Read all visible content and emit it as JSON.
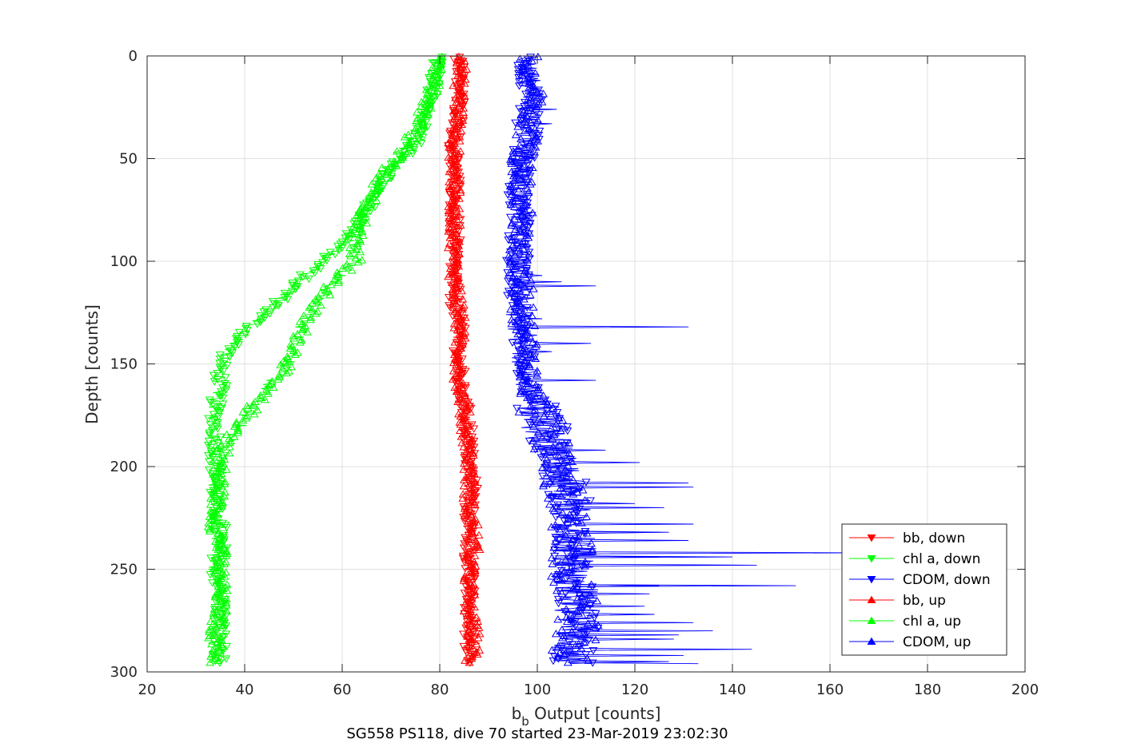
{
  "chart_data": {
    "type": "line",
    "title": "",
    "xlabel_main": "b",
    "xlabel_sub": "b",
    "xlabel_rest": " Output [counts]",
    "ylabel": "Depth [counts]",
    "caption": "SG558 PS118, dive 70 started 23-Mar-2019 23:02:30",
    "xlim": [
      20,
      200
    ],
    "ylim": [
      0,
      300
    ],
    "y_reversed": true,
    "grid": true,
    "legend_position": "bottom-right",
    "x_ticks": [
      "20",
      "40",
      "60",
      "80",
      "100",
      "120",
      "140",
      "160",
      "180",
      "200"
    ],
    "y_ticks": [
      "0",
      "50",
      "100",
      "150",
      "200",
      "250",
      "300"
    ],
    "colors": {
      "bb": "#ff0000",
      "chl": "#00ff00",
      "cdom": "#0000ff",
      "grid": "#e0e0e0",
      "axis": "#262626"
    },
    "series": [
      {
        "name": "bb, down",
        "color": "#ff0000",
        "marker": "triangle-down",
        "depth": [
          1,
          10,
          20,
          30,
          40,
          50,
          60,
          70,
          80,
          90,
          100,
          110,
          120,
          130,
          140,
          150,
          160,
          170,
          180,
          190,
          200,
          210,
          220,
          230,
          240,
          250,
          260,
          270,
          280,
          290,
          296
        ],
        "value": [
          84,
          84,
          84,
          84,
          83,
          83,
          83,
          83,
          83,
          83,
          83,
          83,
          83,
          84,
          84,
          84,
          84,
          85,
          86,
          86,
          86,
          87,
          86,
          86,
          86,
          86,
          86,
          86,
          86,
          86,
          87
        ],
        "noise": 1.3
      },
      {
        "name": "chl a, down",
        "color": "#00ff00",
        "marker": "triangle-down",
        "depth": [
          1,
          10,
          20,
          30,
          40,
          50,
          60,
          70,
          80,
          90,
          100,
          110,
          120,
          130,
          140,
          150,
          160,
          170,
          180,
          190,
          200,
          210,
          220,
          230,
          240,
          250,
          260,
          270,
          280,
          290,
          296
        ],
        "value": [
          80,
          79,
          78,
          77,
          76,
          72,
          69,
          66,
          64,
          61,
          56,
          51,
          47,
          42,
          38,
          35,
          35,
          34,
          34,
          34,
          34,
          34,
          34,
          35,
          35,
          34,
          35,
          35,
          35,
          35,
          35
        ],
        "noise": 1.5
      },
      {
        "name": "CDOM, down",
        "color": "#0000ff",
        "marker": "triangle-down",
        "depth": [
          1,
          10,
          20,
          30,
          40,
          50,
          60,
          70,
          80,
          90,
          100,
          110,
          120,
          130,
          140,
          150,
          160,
          170,
          180,
          190,
          200,
          210,
          220,
          230,
          240,
          250,
          260,
          270,
          280,
          290,
          296
        ],
        "value": [
          97,
          98,
          99,
          98,
          98,
          97,
          96,
          96,
          97,
          96,
          96,
          96,
          96,
          96,
          97,
          97,
          98,
          100,
          102,
          103,
          104,
          106,
          107,
          107,
          108,
          108,
          108,
          108,
          108,
          108,
          107
        ],
        "noise": 2.5
      },
      {
        "name": "bb, up",
        "color": "#ff0000",
        "marker": "triangle-up",
        "depth": [
          1,
          10,
          20,
          30,
          40,
          50,
          60,
          70,
          80,
          90,
          100,
          110,
          120,
          130,
          140,
          150,
          160,
          170,
          180,
          190,
          200,
          210,
          220,
          230,
          240,
          250,
          260,
          270,
          280,
          290,
          296
        ],
        "value": [
          85,
          84,
          84,
          84,
          83,
          83,
          83,
          83,
          83,
          83,
          83,
          83,
          84,
          84,
          84,
          84,
          84,
          85,
          85,
          86,
          86,
          86,
          86,
          87,
          87,
          86,
          86,
          86,
          87,
          87,
          86
        ],
        "noise": 1.3
      },
      {
        "name": "chl a, up",
        "color": "#00ff00",
        "marker": "triangle-up",
        "depth": [
          1,
          10,
          20,
          30,
          40,
          50,
          60,
          70,
          80,
          90,
          100,
          110,
          120,
          130,
          140,
          150,
          160,
          170,
          180,
          190,
          200,
          210,
          220,
          230,
          240,
          250,
          260,
          270,
          280,
          290,
          296
        ],
        "value": [
          79,
          79,
          78,
          76,
          74,
          71,
          68,
          66,
          64,
          63,
          63,
          58,
          55,
          52,
          51,
          49,
          45,
          42,
          39,
          36,
          35,
          35,
          34,
          34,
          35,
          35,
          35,
          35,
          34,
          34,
          34
        ],
        "noise": 1.5
      },
      {
        "name": "CDOM, up",
        "color": "#0000ff",
        "marker": "triangle-up",
        "depth": [
          1,
          10,
          20,
          30,
          40,
          50,
          60,
          70,
          80,
          90,
          100,
          110,
          120,
          130,
          140,
          150,
          160,
          170,
          180,
          190,
          200,
          210,
          220,
          230,
          240,
          250,
          260,
          270,
          280,
          290,
          296
        ],
        "value": [
          98,
          98,
          99,
          98,
          98,
          97,
          97,
          96,
          97,
          96,
          96,
          97,
          97,
          97,
          98,
          98,
          98,
          100,
          101,
          103,
          104,
          105,
          106,
          106,
          107,
          107,
          108,
          108,
          108,
          107,
          106
        ],
        "noise": 2.5,
        "spikes": [
          [
            112,
            112
          ],
          [
            132,
            131
          ],
          [
            140,
            111
          ],
          [
            198,
            121
          ],
          [
            210,
            132
          ],
          [
            220,
            126
          ],
          [
            228,
            132
          ],
          [
            232,
            125
          ],
          [
            236,
            131
          ],
          [
            242,
            166
          ],
          [
            244,
            140
          ],
          [
            248,
            145
          ],
          [
            258,
            125
          ],
          [
            268,
            122
          ],
          [
            276,
            132
          ],
          [
            280,
            136
          ],
          [
            284,
            128
          ],
          [
            292,
            130
          ],
          [
            296,
            133
          ]
        ]
      }
    ],
    "downcast_spikes": [
      [
        26,
        104
      ],
      [
        33,
        103
      ],
      [
        107,
        101
      ],
      [
        110,
        105
      ],
      [
        128,
        101
      ],
      [
        144,
        103
      ],
      [
        158,
        112
      ],
      [
        192,
        114
      ],
      [
        208,
        131
      ],
      [
        218,
        120
      ],
      [
        232,
        127
      ],
      [
        244,
        125
      ],
      [
        258,
        153
      ],
      [
        262,
        123
      ],
      [
        272,
        124
      ],
      [
        282,
        129
      ],
      [
        289,
        144
      ],
      [
        295,
        127
      ]
    ]
  }
}
